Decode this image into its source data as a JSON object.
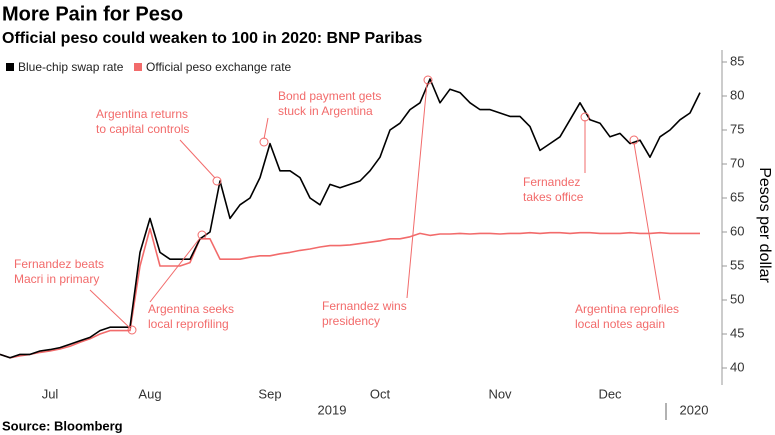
{
  "chart_data": {
    "type": "line",
    "title": "More Pain for Peso",
    "subtitle": "Official peso could weaken to 100 in 2020: BNP Paribas",
    "y_label": "Pesos per dollar",
    "source": "Source: Bloomberg",
    "xlim": [
      0,
      70
    ],
    "xticks": [
      {
        "value": 5,
        "label": "Jul"
      },
      {
        "value": 15,
        "label": "Aug"
      },
      {
        "value": 27,
        "label": "Sep"
      },
      {
        "value": 38,
        "label": "Oct"
      },
      {
        "value": 50,
        "label": "Nov"
      },
      {
        "value": 61,
        "label": "Dec"
      },
      {
        "value": 70,
        "label": "2020"
      }
    ],
    "year_label": "2019",
    "ylim": [
      40,
      85
    ],
    "yticks": [
      40,
      45,
      50,
      55,
      60,
      65,
      70,
      75,
      80,
      85
    ],
    "grid": false,
    "legend": "top-left",
    "series": [
      {
        "name": "Blue-chip swap rate",
        "color": "#000000",
        "values": [
          42,
          41.5,
          42,
          42,
          42.5,
          42.7,
          43,
          43.5,
          44,
          44.5,
          45.5,
          46,
          46,
          46,
          57,
          62,
          57,
          56,
          56,
          56,
          59,
          60,
          67.5,
          62,
          64,
          65,
          68,
          73,
          69,
          69,
          68,
          65,
          64,
          67,
          66.5,
          67,
          67.5,
          69,
          71,
          75,
          76,
          78,
          79,
          82.5,
          79,
          81,
          80.5,
          79,
          78,
          78,
          77.5,
          77,
          77,
          75.5,
          72,
          73,
          74,
          76.5,
          79,
          76.5,
          76,
          74,
          74.5,
          73,
          73.5,
          71,
          74,
          75,
          76.5,
          77.5,
          80.5
        ]
      },
      {
        "name": "Official peso exchange rate",
        "color": "#f26b6b",
        "values": [
          42,
          41.5,
          41.8,
          42,
          42.3,
          42.5,
          42.8,
          43.2,
          43.8,
          44.3,
          45,
          45.5,
          45.5,
          45.5,
          55,
          60.5,
          55,
          55,
          55,
          55.5,
          59,
          59,
          56,
          56,
          56,
          56.3,
          56.5,
          56.5,
          56.8,
          57,
          57.3,
          57.5,
          57.8,
          58,
          58,
          58.1,
          58.3,
          58.5,
          58.7,
          59,
          59,
          59.3,
          59.8,
          59.5,
          59.7,
          59.7,
          59.8,
          59.7,
          59.8,
          59.8,
          59.7,
          59.8,
          59.8,
          59.9,
          59.8,
          59.9,
          59.9,
          59.8,
          59.9,
          59.9,
          59.8,
          59.8,
          59.8,
          59.9,
          59.8,
          59.8,
          59.9,
          59.8,
          59.8,
          59.8,
          59.8
        ]
      }
    ],
    "annotations": [
      {
        "lines": [
          "Fernandez beats",
          "Macri in primary"
        ]
      },
      {
        "lines": [
          "Argentina returns",
          "to capital controls"
        ]
      },
      {
        "lines": [
          "Bond payment gets",
          "stuck in Argentina"
        ]
      },
      {
        "lines": [
          "Argentina seeks",
          "local reprofiling"
        ]
      },
      {
        "lines": [
          "Fernandez wins",
          "presidency"
        ]
      },
      {
        "lines": [
          "Fernandez",
          "takes office"
        ]
      },
      {
        "lines": [
          "Argentina reprofiles",
          "local notes again"
        ]
      }
    ]
  }
}
